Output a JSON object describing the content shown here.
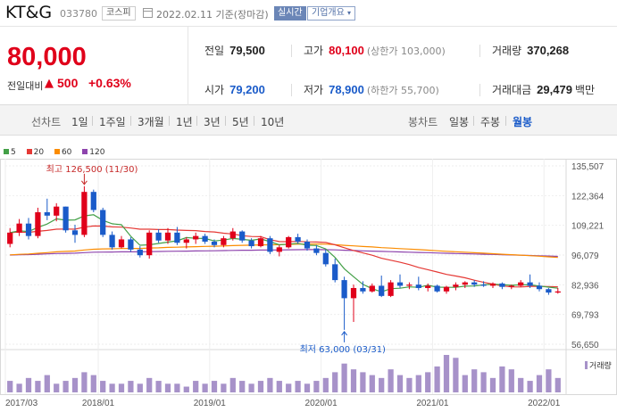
{
  "header": {
    "name": "KT&G",
    "code": "033780",
    "market": "코스피",
    "date": "2022.02.11 기준(장마감)",
    "realtime": "실시간",
    "company_info": "기업개요"
  },
  "quote": {
    "price": "80,000",
    "change_label": "전일대비",
    "change_arrow": "▲",
    "change_value": "500",
    "change_pct": "+0.63%",
    "prev_close_label": "전일",
    "prev_close": "79,500",
    "high_label": "고가",
    "high": "80,100",
    "upper_limit": "(상한가 103,000)",
    "volume_label": "거래량",
    "volume": "370,268",
    "open_label": "시가",
    "open": "79,200",
    "low_label": "저가",
    "low": "78,900",
    "lower_limit": "(하한가 55,700)",
    "amount_label": "거래대금",
    "amount": "29,479",
    "amount_unit": "백만"
  },
  "tabs": {
    "line_label": "선차트",
    "line_periods": [
      "1일",
      "1주일",
      "3개월",
      "1년",
      "3년",
      "5년",
      "10년"
    ],
    "candle_label": "봉차트",
    "candle_periods": [
      "일봉",
      "주봉",
      "월봉"
    ],
    "selected_candle": "월봉"
  },
  "colors": {
    "up": "#e0001a",
    "down": "#1a5bc9",
    "ma5": "#43a047",
    "ma20": "#e53935",
    "ma60": "#fb8c00",
    "ma120": "#8e44ad",
    "volume": "#a792c9"
  },
  "chart_data": {
    "type": "candlestick",
    "legend": [
      "5",
      "20",
      "60",
      "120"
    ],
    "y_ticks": [
      135507,
      122364,
      109221,
      96079,
      82936,
      69793,
      56650
    ],
    "y_range": [
      56650,
      135507
    ],
    "x_ticks": [
      "2017/03",
      "2018/01",
      "2019/01",
      "2020/01",
      "2021/01",
      "2022/01"
    ],
    "x_tick_index": [
      0,
      10,
      22,
      34,
      46,
      58
    ],
    "annotations": {
      "high": {
        "text": "최고 126,500 (11/30)",
        "value": 126500,
        "index": 8
      },
      "low": {
        "text": "최저 63,000 (03/31)",
        "value": 63000,
        "index": 36
      }
    },
    "volume_label": "거래량",
    "candles": [
      {
        "o": 101000,
        "h": 108000,
        "l": 99500,
        "c": 106000
      },
      {
        "o": 106000,
        "h": 112000,
        "l": 104500,
        "c": 110000
      },
      {
        "o": 110000,
        "h": 112500,
        "l": 103000,
        "c": 104500
      },
      {
        "o": 104500,
        "h": 117000,
        "l": 103500,
        "c": 115000
      },
      {
        "o": 115000,
        "h": 121000,
        "l": 111500,
        "c": 113500
      },
      {
        "o": 113500,
        "h": 119000,
        "l": 111000,
        "c": 117500
      },
      {
        "o": 117500,
        "h": 117500,
        "l": 106000,
        "c": 107000
      },
      {
        "o": 107000,
        "h": 109500,
        "l": 101500,
        "c": 105000
      },
      {
        "o": 105000,
        "h": 126500,
        "l": 104000,
        "c": 124000
      },
      {
        "o": 124000,
        "h": 125000,
        "l": 115000,
        "c": 116000
      },
      {
        "o": 116000,
        "h": 117000,
        "l": 104000,
        "c": 105000
      },
      {
        "o": 105000,
        "h": 106500,
        "l": 98500,
        "c": 99500
      },
      {
        "o": 99500,
        "h": 104500,
        "l": 99000,
        "c": 103000
      },
      {
        "o": 103000,
        "h": 104000,
        "l": 97500,
        "c": 98500
      },
      {
        "o": 98500,
        "h": 100000,
        "l": 95000,
        "c": 96000
      },
      {
        "o": 96000,
        "h": 107000,
        "l": 94500,
        "c": 106000
      },
      {
        "o": 106000,
        "h": 107500,
        "l": 101500,
        "c": 102500
      },
      {
        "o": 102500,
        "h": 108000,
        "l": 101000,
        "c": 106000
      },
      {
        "o": 106000,
        "h": 108500,
        "l": 100500,
        "c": 101500
      },
      {
        "o": 101500,
        "h": 104000,
        "l": 99000,
        "c": 103000
      },
      {
        "o": 103000,
        "h": 106000,
        "l": 101000,
        "c": 104500
      },
      {
        "o": 104500,
        "h": 105500,
        "l": 101000,
        "c": 102000
      },
      {
        "o": 102000,
        "h": 103000,
        "l": 99500,
        "c": 100500
      },
      {
        "o": 100500,
        "h": 104500,
        "l": 99500,
        "c": 103500
      },
      {
        "o": 103500,
        "h": 108000,
        "l": 102500,
        "c": 106500
      },
      {
        "o": 106500,
        "h": 107000,
        "l": 101500,
        "c": 102500
      },
      {
        "o": 102500,
        "h": 103500,
        "l": 99000,
        "c": 100000
      },
      {
        "o": 100000,
        "h": 104500,
        "l": 99500,
        "c": 103500
      },
      {
        "o": 103500,
        "h": 104500,
        "l": 96500,
        "c": 97500
      },
      {
        "o": 97500,
        "h": 100500,
        "l": 95500,
        "c": 99500
      },
      {
        "o": 99500,
        "h": 104500,
        "l": 99000,
        "c": 104000
      },
      {
        "o": 104000,
        "h": 105500,
        "l": 101000,
        "c": 102000
      },
      {
        "o": 102000,
        "h": 103000,
        "l": 98000,
        "c": 99000
      },
      {
        "o": 99000,
        "h": 100500,
        "l": 96000,
        "c": 97000
      },
      {
        "o": 97000,
        "h": 98500,
        "l": 91000,
        "c": 92000
      },
      {
        "o": 92000,
        "h": 94500,
        "l": 84000,
        "c": 85000
      },
      {
        "o": 85000,
        "h": 86500,
        "l": 63000,
        "c": 77000
      },
      {
        "o": 77000,
        "h": 83000,
        "l": 66500,
        "c": 81500
      },
      {
        "o": 81500,
        "h": 84500,
        "l": 79000,
        "c": 80000
      },
      {
        "o": 80000,
        "h": 83500,
        "l": 79500,
        "c": 82500
      },
      {
        "o": 82500,
        "h": 87000,
        "l": 77500,
        "c": 78000
      },
      {
        "o": 78000,
        "h": 85000,
        "l": 77500,
        "c": 84000
      },
      {
        "o": 84000,
        "h": 87500,
        "l": 81500,
        "c": 82500
      },
      {
        "o": 82500,
        "h": 84000,
        "l": 81000,
        "c": 83000
      },
      {
        "o": 83000,
        "h": 86500,
        "l": 80500,
        "c": 81500
      },
      {
        "o": 81500,
        "h": 83500,
        "l": 80000,
        "c": 82500
      },
      {
        "o": 82500,
        "h": 83000,
        "l": 79500,
        "c": 80000
      },
      {
        "o": 80000,
        "h": 82500,
        "l": 79000,
        "c": 82000
      },
      {
        "o": 82000,
        "h": 84000,
        "l": 80500,
        "c": 83000
      },
      {
        "o": 83000,
        "h": 84500,
        "l": 81500,
        "c": 84000
      },
      {
        "o": 84000,
        "h": 85000,
        "l": 82000,
        "c": 83000
      },
      {
        "o": 83000,
        "h": 84500,
        "l": 82000,
        "c": 82500
      },
      {
        "o": 82500,
        "h": 84000,
        "l": 81500,
        "c": 83500
      },
      {
        "o": 83500,
        "h": 84000,
        "l": 81000,
        "c": 82000
      },
      {
        "o": 82000,
        "h": 83000,
        "l": 81000,
        "c": 82500
      },
      {
        "o": 82500,
        "h": 85000,
        "l": 82000,
        "c": 84000
      },
      {
        "o": 84000,
        "h": 87500,
        "l": 81500,
        "c": 82500
      },
      {
        "o": 82500,
        "h": 84000,
        "l": 80000,
        "c": 81000
      },
      {
        "o": 81000,
        "h": 81500,
        "l": 78500,
        "c": 79500
      },
      {
        "o": 79500,
        "h": 81500,
        "l": 79000,
        "c": 80000
      }
    ],
    "volume": [
      4,
      3,
      5,
      4,
      6,
      3,
      4,
      5,
      7,
      6,
      4,
      3,
      3,
      4,
      3,
      5,
      4,
      3,
      3,
      2,
      4,
      3,
      4,
      3,
      5,
      4,
      3,
      4,
      5,
      4,
      3,
      4,
      3,
      4,
      5,
      7,
      10,
      8,
      7,
      6,
      5,
      8,
      6,
      5,
      6,
      7,
      9,
      13,
      12,
      6,
      8,
      7,
      5,
      9,
      8,
      5,
      4,
      6,
      8,
      5
    ]
  }
}
